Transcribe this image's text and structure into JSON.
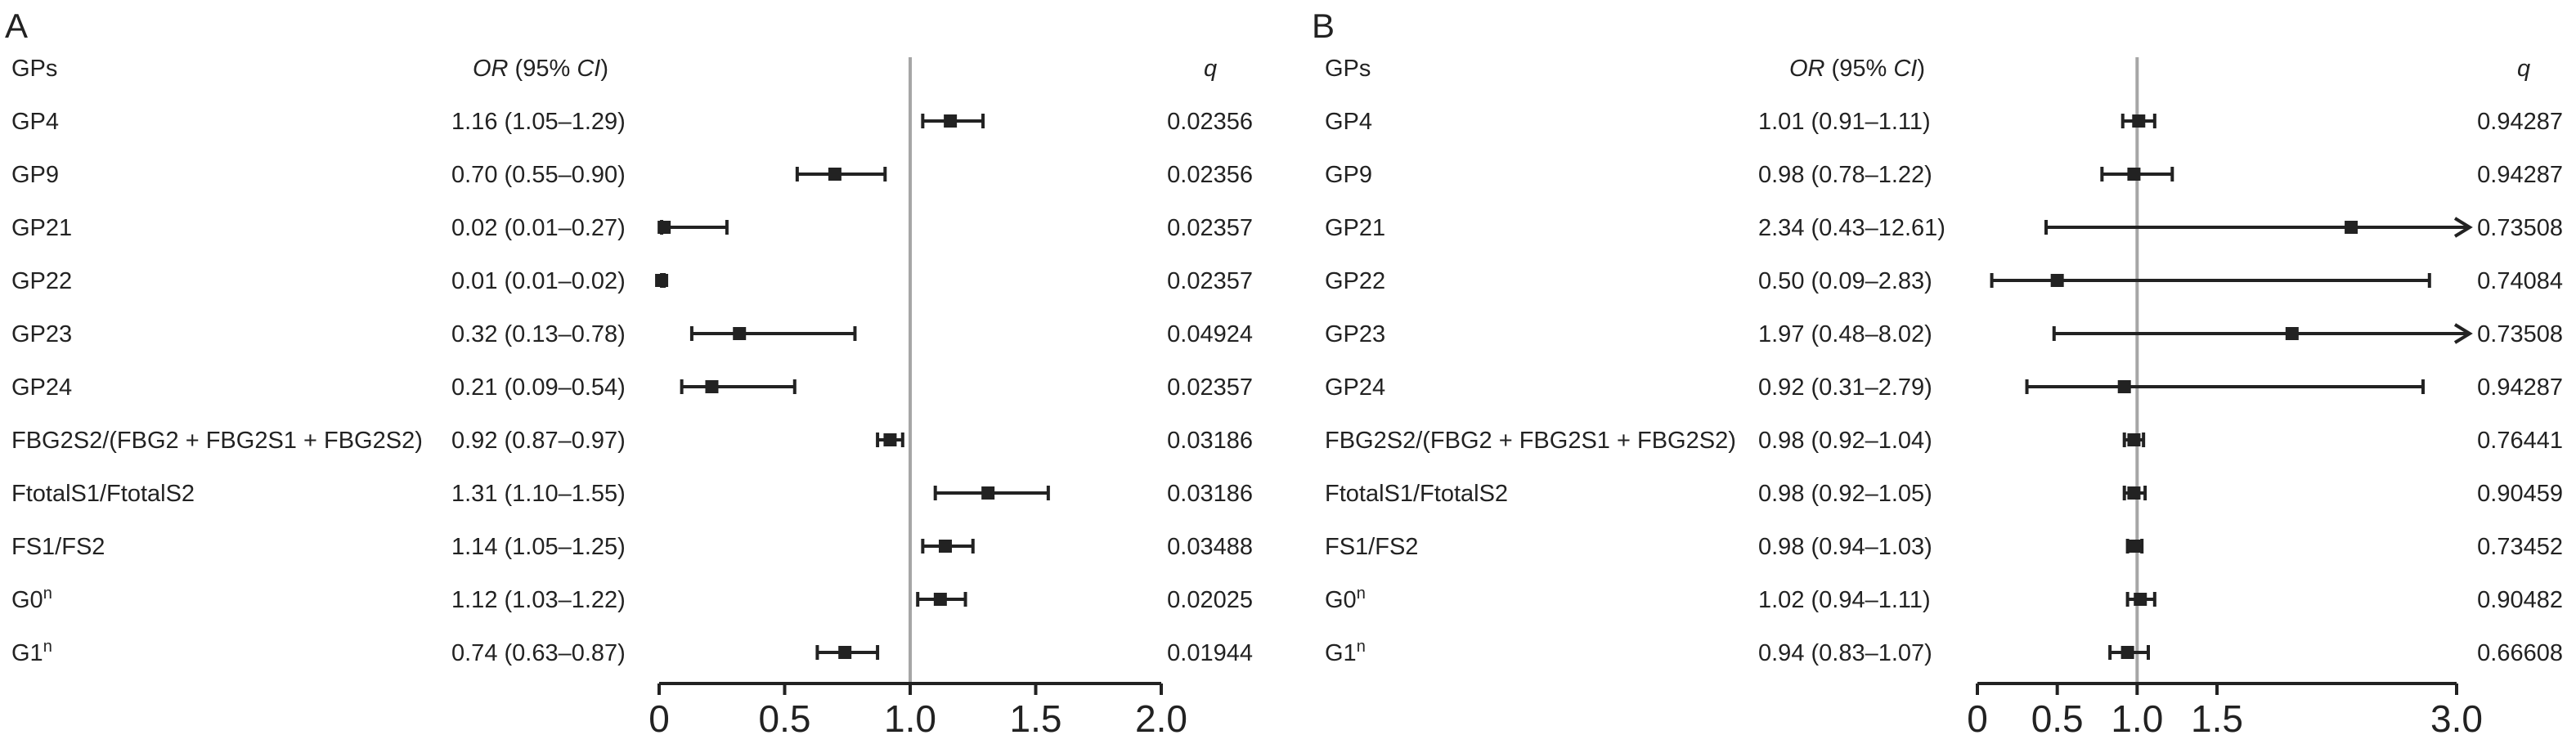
{
  "chart_data": [
    {
      "type": "forest",
      "panel": "A",
      "headers": {
        "group": "GPs",
        "or_em": "OR",
        "or_rest": " (95% ",
        "ci_em": "CI",
        "close": ")",
        "q": "q"
      },
      "xlim": [
        0,
        2.0
      ],
      "ref_line": 1.0,
      "ticks": [
        {
          "v": 0,
          "label": "0"
        },
        {
          "v": 0.5,
          "label": "0.5"
        },
        {
          "v": 1.0,
          "label": "1.0"
        },
        {
          "v": 1.5,
          "label": "1.5"
        },
        {
          "v": 2.0,
          "label": "2.0"
        }
      ],
      "rows": [
        {
          "label": "GP4",
          "or_text": "1.16 (1.05–1.29)",
          "or": 1.16,
          "lo": 1.05,
          "hi": 1.29,
          "q": "0.02356"
        },
        {
          "label": "GP9",
          "or_text": "0.70 (0.55–0.90)",
          "or": 0.7,
          "lo": 0.55,
          "hi": 0.9,
          "q": "0.02356"
        },
        {
          "label": "GP21",
          "or_text": "0.02 (0.01–0.27)",
          "or": 0.02,
          "lo": 0.01,
          "hi": 0.27,
          "q": "0.02357"
        },
        {
          "label": "GP22",
          "or_text": "0.01 (0.01–0.02)",
          "or": 0.01,
          "lo": 0.01,
          "hi": 0.02,
          "q": "0.02357"
        },
        {
          "label": "GP23",
          "or_text": "0.32 (0.13–0.78)",
          "or": 0.32,
          "lo": 0.13,
          "hi": 0.78,
          "q": "0.04924"
        },
        {
          "label": "GP24",
          "or_text": "0.21 (0.09–0.54)",
          "or": 0.21,
          "lo": 0.09,
          "hi": 0.54,
          "q": "0.02357"
        },
        {
          "label": "FBG2S2/(FBG2 + FBG2S1 + FBG2S2)",
          "or_text": "0.92 (0.87–0.97)",
          "or": 0.92,
          "lo": 0.87,
          "hi": 0.97,
          "q": "0.03186"
        },
        {
          "label": "FtotalS1/FtotalS2",
          "or_text": "1.31 (1.10–1.55)",
          "or": 1.31,
          "lo": 1.1,
          "hi": 1.55,
          "q": "0.03186"
        },
        {
          "label": "FS1/FS2",
          "or_text": "1.14 (1.05–1.25)",
          "or": 1.14,
          "lo": 1.05,
          "hi": 1.25,
          "q": "0.03488"
        },
        {
          "label": "G0",
          "sup": "n",
          "or_text": "1.12 (1.03–1.22)",
          "or": 1.12,
          "lo": 1.03,
          "hi": 1.22,
          "q": "0.02025"
        },
        {
          "label": "G1",
          "sup": "n",
          "or_text": "0.74 (0.63–0.87)",
          "or": 0.74,
          "lo": 0.63,
          "hi": 0.87,
          "q": "0.01944"
        }
      ]
    },
    {
      "type": "forest",
      "panel": "B",
      "headers": {
        "group": "GPs",
        "or_em": "OR",
        "or_rest": " (95% ",
        "ci_em": "CI",
        "close": ")",
        "q": "q"
      },
      "xlim": [
        0,
        3.0
      ],
      "ref_line": 1.0,
      "ticks": [
        {
          "v": 0,
          "label": "0"
        },
        {
          "v": 0.5,
          "label": "0.5"
        },
        {
          "v": 1.0,
          "label": "1.0"
        },
        {
          "v": 1.5,
          "label": "1.5"
        },
        {
          "v": 3.0,
          "label": "3.0"
        }
      ],
      "rows": [
        {
          "label": "GP4",
          "or_text": "1.01 (0.91–1.11)",
          "or": 1.01,
          "lo": 0.91,
          "hi": 1.11,
          "q": "0.94287"
        },
        {
          "label": "GP9",
          "or_text": "0.98 (0.78–1.22)",
          "or": 0.98,
          "lo": 0.78,
          "hi": 1.22,
          "q": "0.94287"
        },
        {
          "label": "GP21",
          "or_text": "2.34 (0.43–12.61)",
          "or": 2.34,
          "lo": 0.43,
          "hi": 12.61,
          "q": "0.73508"
        },
        {
          "label": "GP22",
          "or_text": "0.50 (0.09–2.83)",
          "or": 0.5,
          "lo": 0.09,
          "hi": 2.83,
          "q": "0.74084"
        },
        {
          "label": "GP23",
          "or_text": "1.97 (0.48–8.02)",
          "or": 1.97,
          "lo": 0.48,
          "hi": 8.02,
          "q": "0.73508"
        },
        {
          "label": "GP24",
          "or_text": "0.92 (0.31–2.79)",
          "or": 0.92,
          "lo": 0.31,
          "hi": 2.79,
          "q": "0.94287"
        },
        {
          "label": "FBG2S2/(FBG2 + FBG2S1 + FBG2S2)",
          "or_text": "0.98 (0.92–1.04)",
          "or": 0.98,
          "lo": 0.92,
          "hi": 1.04,
          "q": "0.76441"
        },
        {
          "label": "FtotalS1/FtotalS2",
          "or_text": "0.98 (0.92–1.05)",
          "or": 0.98,
          "lo": 0.92,
          "hi": 1.05,
          "q": "0.90459"
        },
        {
          "label": "FS1/FS2",
          "or_text": "0.98 (0.94–1.03)",
          "or": 0.98,
          "lo": 0.94,
          "hi": 1.03,
          "q": "0.73452"
        },
        {
          "label": "G0",
          "sup": "n",
          "or_text": "1.02 (0.94–1.11)",
          "or": 1.02,
          "lo": 0.94,
          "hi": 1.11,
          "q": "0.90482"
        },
        {
          "label": "G1",
          "sup": "n",
          "or_text": "0.94 (0.83–1.07)",
          "or": 0.94,
          "lo": 0.83,
          "hi": 1.07,
          "q": "0.66608"
        }
      ]
    }
  ]
}
